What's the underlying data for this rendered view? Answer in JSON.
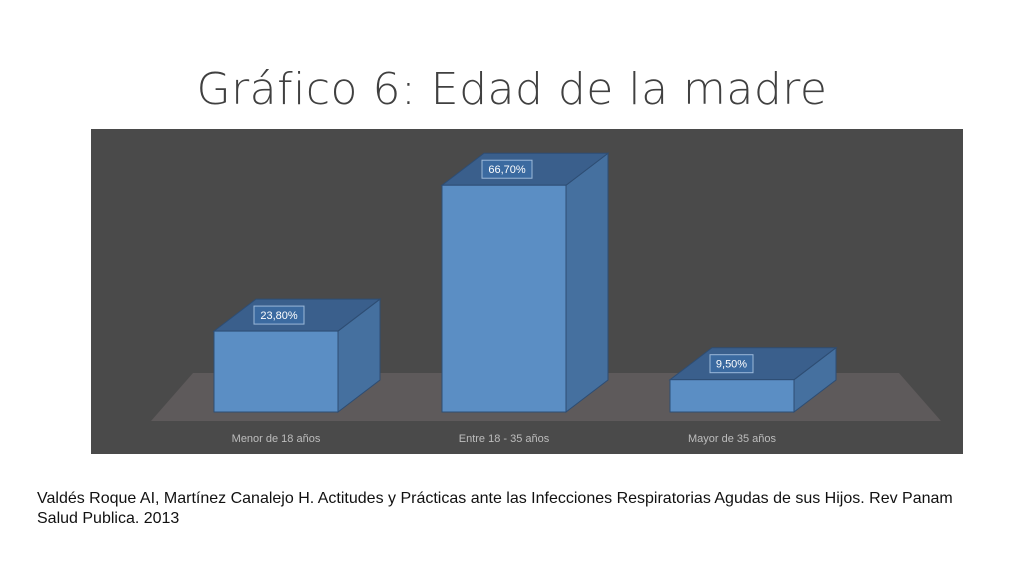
{
  "title": "Gráfico 6: Edad de la madre",
  "chart_data": {
    "type": "bar",
    "style": "3d-column",
    "categories": [
      "Menor de 18 años",
      "Entre 18 - 35 años",
      "Mayor de 35 años"
    ],
    "values": [
      23.8,
      66.7,
      9.5
    ],
    "data_labels": [
      "23,80%",
      "66,70%",
      "9,50%"
    ],
    "ylim": [
      0,
      80
    ],
    "grid": false,
    "legend": "none",
    "colors": {
      "panel_bg": "#4a4a4a",
      "floor": "#5e5a5b",
      "bar_front": "#5b8ec4",
      "bar_side": "#45709f",
      "bar_top": "#3a5f8c",
      "bar_edge": "#2e4d73",
      "label_bg": "#3b6aa0",
      "label_text": "#ffffff",
      "tick_text": "#bdbdbd"
    }
  },
  "caption": "Valdés Roque AI, Martínez Canalejo H. Actitudes y Prácticas ante las Infecciones Respiratorias Agudas de sus Hijos. Rev Panam Salud Publica. 2013"
}
